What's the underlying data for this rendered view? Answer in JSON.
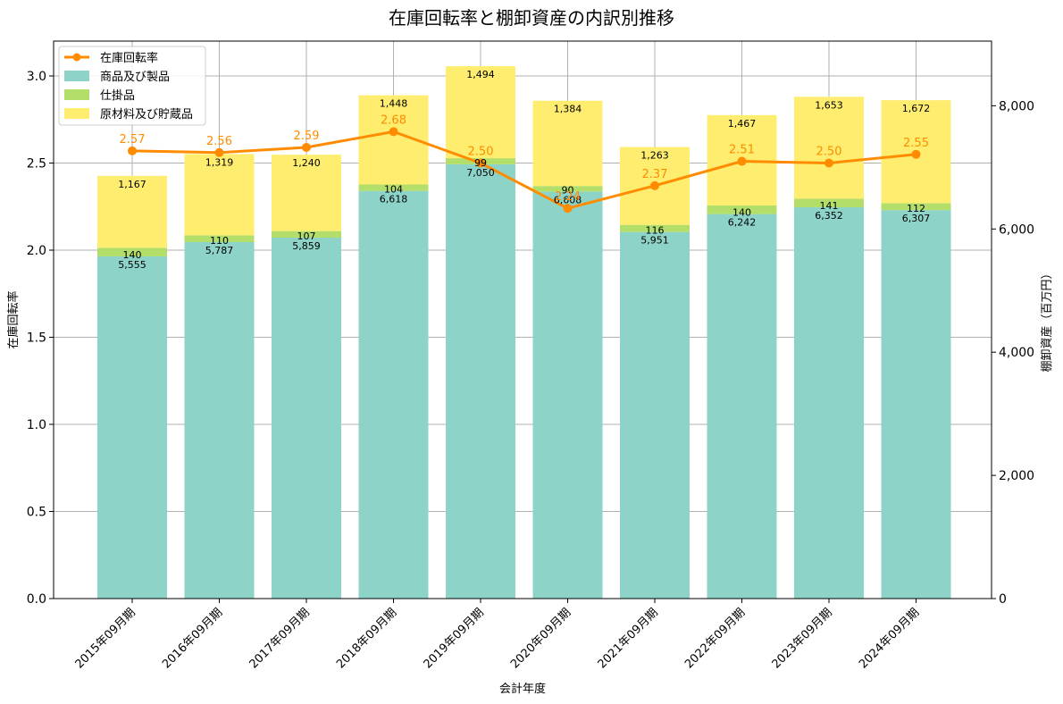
{
  "chart_data": {
    "type": "bar",
    "title": "在庫回転率と棚卸資産の内訳別推移",
    "xlabel": "会計年度",
    "ylabel_left": "在庫回転率",
    "ylabel_right": "棚卸資産（百万円）",
    "ylim_left": [
      0,
      3.2
    ],
    "ylim_right": [
      0,
      9050
    ],
    "yticks_left": [
      0.0,
      0.5,
      1.0,
      1.5,
      2.0,
      2.5,
      3.0
    ],
    "yticks_right": [
      0,
      2000,
      4000,
      6000,
      8000
    ],
    "grid": true,
    "legend_position": "top-left",
    "categories": [
      "2015年09月期",
      "2016年09月期",
      "2017年09月期",
      "2018年09月期",
      "2019年09月期",
      "2020年09月期",
      "2021年09月期",
      "2022年09月期",
      "2023年09月期",
      "2024年09月期"
    ],
    "series": [
      {
        "name": "商品及び製品",
        "type": "bar",
        "axis": "right",
        "color": "#8dd3c7",
        "values": [
          5555,
          5787,
          5859,
          6618,
          7050,
          6608,
          5951,
          6242,
          6352,
          6307
        ]
      },
      {
        "name": "仕掛品",
        "type": "bar",
        "axis": "right",
        "color": "#b3de69",
        "values": [
          140,
          110,
          107,
          104,
          99,
          90,
          116,
          140,
          141,
          112
        ]
      },
      {
        "name": "原材料及び貯蔵品",
        "type": "bar",
        "axis": "right",
        "color": "#ffed6f",
        "values": [
          1167,
          1319,
          1240,
          1448,
          1494,
          1384,
          1263,
          1467,
          1653,
          1672
        ]
      },
      {
        "name": "在庫回転率",
        "type": "line",
        "axis": "left",
        "color": "#ff8c00",
        "values": [
          2.57,
          2.56,
          2.59,
          2.68,
          2.5,
          2.24,
          2.37,
          2.51,
          2.5,
          2.55
        ]
      }
    ]
  }
}
